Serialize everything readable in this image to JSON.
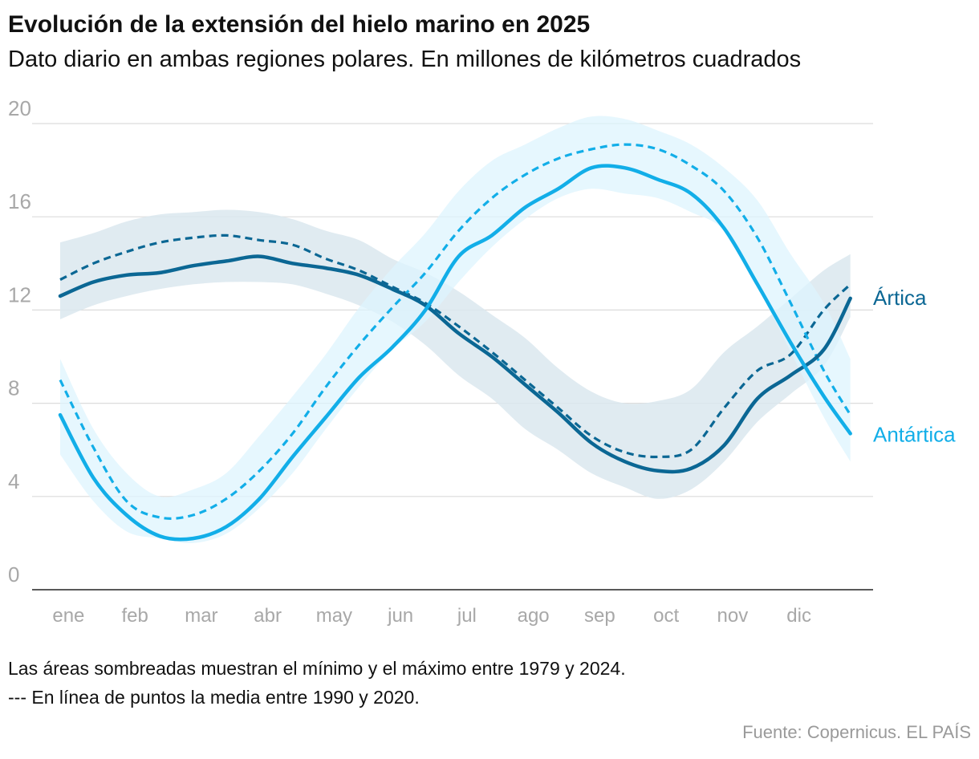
{
  "header": {
    "title": "Evolución de la extensión del hielo marino en 2025",
    "subtitle": "Dato diario en ambas regiones polares. En millones de kilómetros cuadrados"
  },
  "notes": {
    "shaded": "Las áreas sombreadas muestran el mínimo y el máximo entre 1979 y 2024.",
    "dotted": "--- En línea de puntos la media entre 1990 y 2020."
  },
  "source": "Fuente: Copernicus. EL PAÍS",
  "chart_data": {
    "type": "line",
    "title": "Evolución de la extensión del hielo marino en 2025",
    "ylabel": "Millones de km²",
    "ylim": [
      0,
      20
    ],
    "yticks": [
      0,
      4,
      8,
      12,
      16,
      20
    ],
    "grid": true,
    "x_unit": "month (0 = 1 ene, 12 = 31 dic)",
    "xlim": [
      0,
      12
    ],
    "month_labels": [
      "ene",
      "feb",
      "mar",
      "abr",
      "may",
      "jun",
      "jul",
      "ago",
      "sep",
      "oct",
      "nov",
      "dic"
    ],
    "series": [
      {
        "name": "Ártica",
        "label": "Ártica",
        "color": "#0b6794",
        "band_color": "#dbe8ef",
        "x": [
          0,
          0.5,
          1,
          1.5,
          2,
          2.5,
          3,
          3.5,
          4,
          4.5,
          5,
          5.5,
          6,
          6.5,
          7,
          7.5,
          8,
          8.5,
          9,
          9.5,
          10,
          10.5,
          11,
          11.5,
          11.9
        ],
        "y_2025": [
          12.6,
          13.2,
          13.5,
          13.6,
          13.9,
          14.1,
          14.3,
          14.0,
          13.8,
          13.5,
          12.9,
          12.2,
          11.0,
          10.0,
          8.8,
          7.6,
          6.3,
          5.5,
          5.1,
          5.2,
          6.2,
          8.2,
          9.2,
          10.3,
          12.5
        ],
        "y_mean": [
          13.3,
          14.0,
          14.5,
          14.9,
          15.1,
          15.2,
          15.0,
          14.8,
          14.2,
          13.7,
          13.0,
          12.3,
          11.3,
          10.2,
          9.0,
          7.8,
          6.6,
          5.9,
          5.7,
          6.0,
          7.8,
          9.4,
          10.1,
          12.0,
          13.1
        ],
        "y_min": [
          11.6,
          12.2,
          12.6,
          12.9,
          13.1,
          13.2,
          13.2,
          13.1,
          12.7,
          12.2,
          11.5,
          10.5,
          9.2,
          8.2,
          6.9,
          6.0,
          5.0,
          4.4,
          3.9,
          4.3,
          5.5,
          7.2,
          8.4,
          9.6,
          11.7
        ],
        "y_max": [
          14.9,
          15.3,
          15.8,
          16.1,
          16.2,
          16.3,
          16.2,
          15.9,
          15.4,
          15.0,
          14.2,
          13.6,
          12.8,
          11.8,
          10.8,
          9.5,
          8.5,
          8.0,
          8.1,
          8.6,
          10.2,
          11.3,
          12.5,
          13.7,
          14.4
        ]
      },
      {
        "name": "Antártica",
        "label": "Antártica",
        "color": "#12aee8",
        "band_color": "#ddf4fd",
        "x": [
          0,
          0.5,
          1,
          1.5,
          2,
          2.5,
          3,
          3.5,
          4,
          4.5,
          5,
          5.5,
          6,
          6.5,
          7,
          7.5,
          8,
          8.5,
          9,
          9.5,
          10,
          10.5,
          11,
          11.5,
          11.9
        ],
        "y_2025": [
          7.5,
          4.8,
          3.2,
          2.3,
          2.2,
          2.7,
          3.9,
          5.7,
          7.4,
          9.1,
          10.4,
          12.0,
          14.3,
          15.2,
          16.4,
          17.2,
          18.1,
          18.1,
          17.6,
          17.0,
          15.5,
          13.1,
          10.6,
          8.3,
          6.7
        ],
        "y_mean": [
          9.0,
          6.1,
          3.8,
          3.1,
          3.2,
          3.9,
          5.1,
          6.7,
          8.7,
          10.5,
          12.1,
          13.6,
          15.4,
          16.8,
          17.8,
          18.5,
          18.9,
          19.1,
          18.9,
          18.2,
          17.1,
          15.1,
          12.3,
          9.4,
          7.5
        ],
        "y_min": [
          5.8,
          3.8,
          2.5,
          2.2,
          2.0,
          2.4,
          3.5,
          5.0,
          6.9,
          8.7,
          10.3,
          11.5,
          13.2,
          14.7,
          15.9,
          16.8,
          17.2,
          17.0,
          16.8,
          16.2,
          15.4,
          13.0,
          10.2,
          7.4,
          5.5
        ],
        "y_max": [
          9.9,
          6.9,
          5.0,
          4.0,
          4.3,
          5.0,
          6.6,
          8.3,
          10.1,
          12.1,
          13.8,
          15.3,
          17.1,
          18.4,
          19.1,
          19.8,
          20.3,
          20.2,
          19.7,
          19.1,
          18.1,
          16.7,
          14.4,
          12.3,
          9.9
        ]
      }
    ]
  }
}
